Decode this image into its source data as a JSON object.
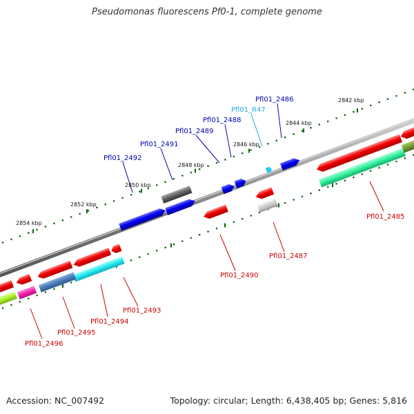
{
  "title": "Pseudomonas fluorescens Pf0-1, complete genome",
  "footer": {
    "accession": "Accession: NC_007492",
    "topology": "Topology: circular; Length: 6,438,405 bp; Genes: 5,816"
  },
  "colors": {
    "forward_label": "#0000aa",
    "reverse_label": "#cc0000",
    "rna_label": "#22aadd",
    "scale": "#116611",
    "backbone": "#888888"
  },
  "scale_labels": [
    "2842 kbp",
    "2844 kbp",
    "2846 kbp",
    "2848 kbp",
    "2850 kbp",
    "2852 kbp",
    "2854 kbp"
  ],
  "gene_labels": {
    "forward": [
      "Pfl01_2486",
      "Pfl01_R47",
      "Pfl01_2488",
      "Pfl01_2489",
      "Pfl01_2491",
      "Pfl01_2492"
    ],
    "reverse": [
      "Pfl01_2485",
      "Pfl01_2487",
      "Pfl01_2490",
      "Pfl01_2493",
      "Pfl01_2494",
      "Pfl01_2495",
      "Pfl01_2496"
    ]
  }
}
